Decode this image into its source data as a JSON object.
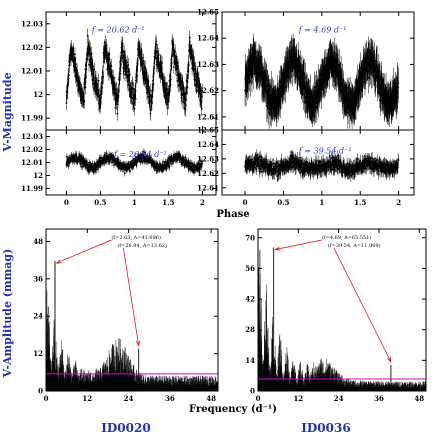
{
  "labels": {
    "top_ylabel": "V-Magnitude",
    "top_xlabel": "Phase",
    "bottom_ylabel": "V-Amplitude (mmag)",
    "bottom_xlabel": "Frequency (d⁻¹)",
    "star_left": "ID0020",
    "star_right": "ID0036"
  },
  "colors": {
    "accent_blue": "#1f2fbf",
    "threshold_magenta": "#d400d4",
    "arrow_red": "#e00000"
  },
  "chart_data": [
    {
      "id": "lc-0020-a",
      "type": "scatter",
      "star": "ID0020",
      "freq_label": "f = 20.62 d⁻¹",
      "xlim": [
        -0.3,
        2.2
      ],
      "ylim": [
        12.035,
        11.985
      ],
      "y_inverted": true,
      "yticks": [
        "11.99",
        "12",
        "12.01",
        "12.02",
        "12.03"
      ],
      "ytick_values": [
        11.99,
        12.0,
        12.01,
        12.02,
        12.03
      ],
      "xticks": [
        "0",
        "0.5",
        "1",
        "1.5",
        "2"
      ],
      "xtick_values": [
        0,
        0.5,
        1,
        1.5,
        2
      ],
      "shape": "sawtooth",
      "cycles": 4,
      "mean": 12.008,
      "amplitude": 0.012,
      "scatter": 0.004,
      "errorbar": 0.003
    },
    {
      "id": "lc-0036-a",
      "type": "scatter",
      "star": "ID0036",
      "freq_label": "f = 4.69 d⁻¹",
      "xlim": [
        -0.3,
        2.2
      ],
      "ylim": [
        12.65,
        12.605
      ],
      "y_inverted": true,
      "yticks": [
        "12.61",
        "12.62",
        "12.63",
        "12.64",
        "12.65"
      ],
      "ytick_values": [
        12.61,
        12.62,
        12.63,
        12.64,
        12.65
      ],
      "xticks": [
        "0",
        "0.5",
        "1",
        "1.5",
        "2"
      ],
      "xtick_values": [
        0,
        0.5,
        1,
        1.5,
        2
      ],
      "shape": "sine",
      "cycles": 2,
      "mean": 12.623,
      "amplitude": 0.008,
      "scatter": 0.004,
      "errorbar": 0.006
    },
    {
      "id": "lc-0020-b",
      "type": "scatter",
      "star": "ID0020",
      "freq_label": "f = 26.94 d⁻¹",
      "xlim": [
        -0.3,
        2.2
      ],
      "ylim": [
        12.035,
        11.985
      ],
      "y_inverted": true,
      "yticks": [
        "11.99",
        "12",
        "12.01",
        "12.02",
        "12.03"
      ],
      "ytick_values": [
        11.99,
        12.0,
        12.01,
        12.02,
        12.03
      ],
      "xticks": [
        "0",
        "0.5",
        "1",
        "1.5",
        "2"
      ],
      "xtick_values": [
        0,
        0.5,
        1,
        1.5,
        2
      ],
      "shape": "sine",
      "cycles": 2,
      "mean": 12.01,
      "amplitude": 0.004,
      "scatter": 0.003,
      "errorbar": 0.0025
    },
    {
      "id": "lc-0036-b",
      "type": "scatter",
      "star": "ID0036",
      "freq_label": "f = 39.54 d⁻¹",
      "xlim": [
        -0.3,
        2.2
      ],
      "ylim": [
        12.65,
        12.605
      ],
      "y_inverted": true,
      "yticks": [
        "12.61",
        "12.62",
        "12.63",
        "12.64",
        "12.65"
      ],
      "ytick_values": [
        12.61,
        12.62,
        12.63,
        12.64,
        12.65
      ],
      "xticks": [
        "0",
        "0.5",
        "1",
        "1.5",
        "2"
      ],
      "xtick_values": [
        0,
        0.5,
        1,
        1.5,
        2
      ],
      "shape": "sine",
      "cycles": 2,
      "mean": 12.625,
      "amplitude": 0.002,
      "scatter": 0.004,
      "errorbar": 0.004
    },
    {
      "id": "ps-0020",
      "type": "line",
      "star": "ID0020",
      "xlim": [
        0,
        50
      ],
      "ylim": [
        0,
        52
      ],
      "xticks": [
        "0",
        "12",
        "24",
        "36",
        "48"
      ],
      "xtick_values": [
        0,
        12,
        24,
        36,
        48
      ],
      "yticks": [
        "0",
        "12",
        "24",
        "36",
        "48"
      ],
      "ytick_values": [
        0,
        12,
        24,
        36,
        48
      ],
      "threshold": 5.5,
      "peaks": [
        {
          "label": "(f=2.63, A=41.696)",
          "freq": 2.63,
          "amp": 41.696
        },
        {
          "label": "(f=26.94, A=13.62)",
          "freq": 26.94,
          "amp": 13.62
        }
      ],
      "envelope": {
        "low_freq_level": 30,
        "decay": 0.22,
        "floor": 4.5,
        "secondary_center": 21,
        "secondary_level": 11
      }
    },
    {
      "id": "ps-0036",
      "type": "line",
      "star": "ID0036",
      "xlim": [
        0,
        50
      ],
      "ylim": [
        0,
        74
      ],
      "xticks": [
        "0",
        "12",
        "24",
        "36",
        "48"
      ],
      "xtick_values": [
        0,
        12,
        24,
        36,
        48
      ],
      "yticks": [
        "0",
        "14",
        "28",
        "42",
        "56",
        "70"
      ],
      "ytick_values": [
        0,
        14,
        28,
        42,
        56,
        70
      ],
      "threshold": 5.5,
      "peaks": [
        {
          "label": "(f=4.69, A=65.551)",
          "freq": 4.69,
          "amp": 65.551
        },
        {
          "label": "(f=39.54, A=11.969)",
          "freq": 39.54,
          "amp": 11.969
        }
      ],
      "envelope": {
        "low_freq_level": 62,
        "decay": 0.16,
        "floor": 4.0,
        "secondary_center": 20,
        "secondary_level": 8
      }
    }
  ]
}
